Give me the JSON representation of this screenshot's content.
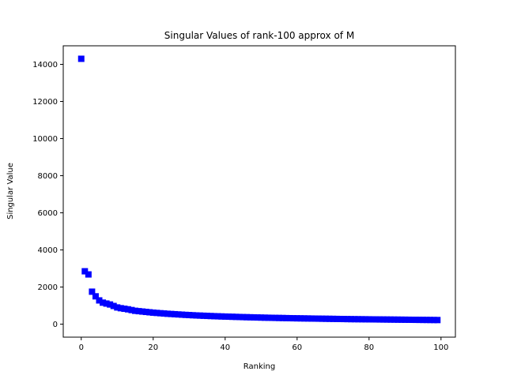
{
  "chart_data": {
    "type": "scatter",
    "title": "Singular Values of rank-100 approx of M",
    "xlabel": "Ranking",
    "ylabel": "Singular Value",
    "xlim": [
      -5,
      104
    ],
    "ylim": [
      -700,
      15000
    ],
    "xticks": [
      0,
      20,
      40,
      60,
      80,
      100
    ],
    "yticks": [
      0,
      2000,
      4000,
      6000,
      8000,
      10000,
      12000,
      14000
    ],
    "grid": false,
    "marker": "square",
    "color": "#0000ff",
    "series": [
      {
        "values": [
          14300,
          2850,
          2680,
          1750,
          1500,
          1280,
          1160,
          1110,
          1060,
          980,
          900,
          860,
          830,
          800,
          760,
          720,
          700,
          680,
          660,
          640,
          620,
          605,
          590,
          575,
          560,
          548,
          536,
          524,
          512,
          500,
          490,
          480,
          470,
          462,
          454,
          446,
          438,
          430,
          423,
          416,
          410,
          404,
          398,
          392,
          386,
          380,
          375,
          370,
          365,
          360,
          355,
          350,
          346,
          342,
          338,
          334,
          330,
          326,
          322,
          318,
          315,
          312,
          309,
          306,
          303,
          300,
          297,
          294,
          291,
          288,
          285,
          282,
          279,
          276,
          273,
          270,
          268,
          266,
          264,
          262,
          260,
          258,
          256,
          254,
          252,
          250,
          248,
          246,
          244,
          242,
          240,
          238,
          236,
          234,
          232,
          230,
          228,
          226,
          224,
          222
        ]
      }
    ]
  }
}
